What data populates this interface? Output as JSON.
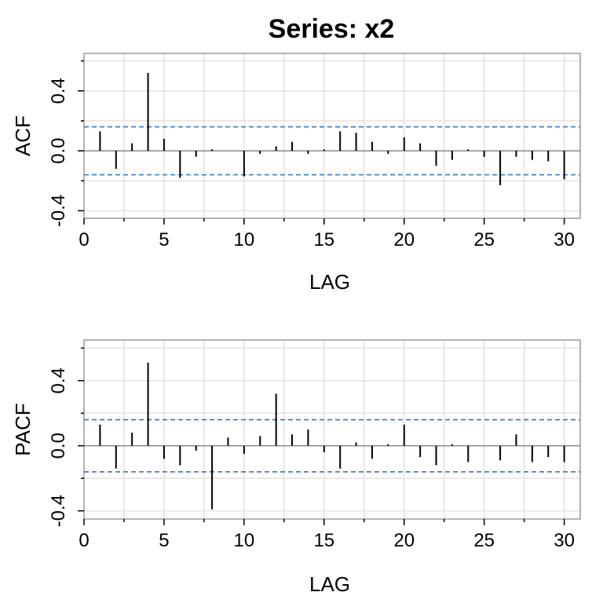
{
  "title": "Series:  x2",
  "chart_data": [
    {
      "type": "bar",
      "panel": "top",
      "xlabel": "LAG",
      "ylabel": "ACF",
      "xlim": [
        0,
        31
      ],
      "ylim": [
        -0.45,
        0.65
      ],
      "xticks": [
        0,
        5,
        10,
        15,
        20,
        25,
        30
      ],
      "yticks": [
        -0.4,
        0.0,
        0.4
      ],
      "ytick_labels": [
        "-0.4",
        "0.0",
        "0.4"
      ],
      "grid": true,
      "conf_bound": 0.16,
      "conf_color": "#3377bb",
      "lags": [
        1,
        2,
        3,
        4,
        5,
        6,
        7,
        8,
        9,
        10,
        11,
        12,
        13,
        14,
        15,
        16,
        17,
        18,
        19,
        20,
        21,
        22,
        23,
        24,
        25,
        26,
        27,
        28,
        29,
        30
      ],
      "values": [
        0.13,
        -0.12,
        0.05,
        0.52,
        0.08,
        -0.18,
        -0.04,
        0.01,
        0.0,
        -0.17,
        -0.02,
        0.03,
        0.06,
        -0.02,
        0.01,
        0.13,
        0.12,
        0.06,
        -0.02,
        0.09,
        0.05,
        -0.1,
        -0.06,
        0.01,
        -0.04,
        -0.23,
        -0.04,
        -0.06,
        -0.07,
        -0.19
      ]
    },
    {
      "type": "bar",
      "panel": "bottom",
      "xlabel": "LAG",
      "ylabel": "PACF",
      "xlim": [
        0,
        31
      ],
      "ylim": [
        -0.45,
        0.65
      ],
      "xticks": [
        0,
        5,
        10,
        15,
        20,
        25,
        30
      ],
      "yticks": [
        -0.4,
        0.0,
        0.4
      ],
      "ytick_labels": [
        "-0.4",
        "0.0",
        "0.4"
      ],
      "grid": true,
      "conf_bound": 0.16,
      "conf_color": "#3377bb",
      "lags": [
        1,
        2,
        3,
        4,
        5,
        6,
        7,
        8,
        9,
        10,
        11,
        12,
        13,
        14,
        15,
        16,
        17,
        18,
        19,
        20,
        21,
        22,
        23,
        24,
        25,
        26,
        27,
        28,
        29,
        30
      ],
      "values": [
        0.13,
        -0.14,
        0.08,
        0.51,
        -0.08,
        -0.12,
        -0.03,
        -0.39,
        0.05,
        -0.05,
        0.06,
        0.32,
        0.07,
        0.1,
        -0.04,
        -0.14,
        0.02,
        -0.08,
        0.01,
        0.13,
        -0.07,
        -0.12,
        0.01,
        -0.1,
        0.0,
        -0.09,
        0.07,
        -0.1,
        -0.07,
        -0.1
      ]
    }
  ]
}
